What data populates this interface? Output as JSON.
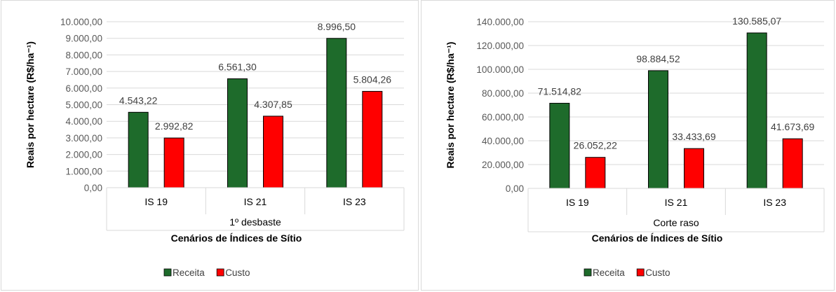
{
  "chart_data": [
    {
      "type": "bar",
      "categories": [
        "IS 19",
        "IS 21",
        "IS 23"
      ],
      "group_label": "1º desbaste",
      "xlabel": "Cenários de Índices de Sítio",
      "ylabel": "Reais por hectare (R$/ha⁻¹)",
      "ylim": [
        0,
        10000
      ],
      "ytick_step": 1000,
      "yticks": [
        "0,00",
        "1.000,00",
        "2.000,00",
        "3.000,00",
        "4.000,00",
        "5.000,00",
        "6.000,00",
        "7.000,00",
        "8.000,00",
        "9.000,00",
        "10.000,00"
      ],
      "grid": true,
      "legend": "bottom",
      "series": [
        {
          "name": "Receita",
          "color": "#1e6b2b",
          "values": [
            4543.22,
            6561.3,
            8996.5
          ],
          "labels": [
            "4.543,22",
            "6.561,30",
            "8.996,50"
          ]
        },
        {
          "name": "Custo",
          "color": "#ff0000",
          "values": [
            2992.82,
            4307.85,
            5804.26
          ],
          "labels": [
            "2.992,82",
            "4.307,85",
            "5.804,26"
          ]
        }
      ]
    },
    {
      "type": "bar",
      "categories": [
        "IS 19",
        "IS 21",
        "IS 23"
      ],
      "group_label": "Corte raso",
      "xlabel": "Cenários de Índices de Sítio",
      "ylabel": "Reais por hectare (R$/ha⁻¹)",
      "ylim": [
        0,
        140000
      ],
      "ytick_step": 20000,
      "yticks": [
        "0,00",
        "20.000,00",
        "40.000,00",
        "60.000,00",
        "80.000,00",
        "100.000,00",
        "120.000,00",
        "140.000,00"
      ],
      "grid": true,
      "legend": "bottom",
      "series": [
        {
          "name": "Receita",
          "color": "#1e6b2b",
          "values": [
            71514.82,
            98884.52,
            130585.07
          ],
          "labels": [
            "71.514,82",
            "98.884,52",
            "130.585,07"
          ]
        },
        {
          "name": "Custo",
          "color": "#ff0000",
          "values": [
            26052.22,
            33433.69,
            41673.69
          ],
          "labels": [
            "26.052,22",
            "33.433,69",
            "41.673,69"
          ]
        }
      ]
    }
  ]
}
